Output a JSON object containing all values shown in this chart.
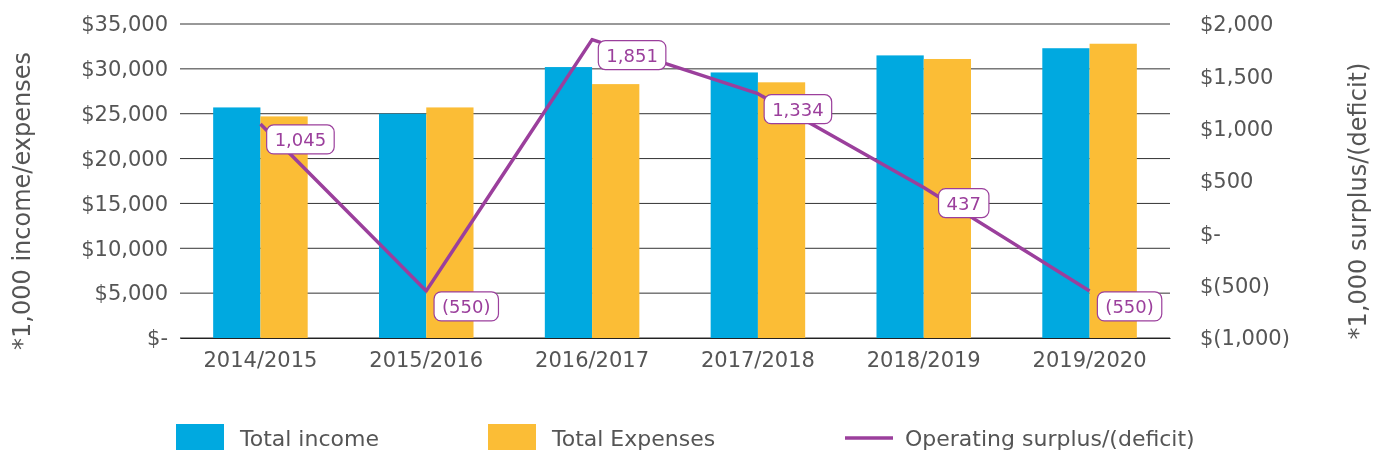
{
  "chart_data": {
    "type": "bar",
    "categories": [
      "2014/2015",
      "2015/2016",
      "2016/2017",
      "2017/2018",
      "2018/2019",
      "2019/2020"
    ],
    "series": [
      {
        "name": "Total income",
        "color": "#00a9e0",
        "values": [
          25700,
          25000,
          30200,
          29600,
          31500,
          32300
        ]
      },
      {
        "name": "Total Expenses",
        "color": "#fbbd36",
        "values": [
          24700,
          25700,
          28300,
          28500,
          31100,
          32800
        ]
      },
      {
        "name": "Operating surplus/(deficit)",
        "type": "line",
        "axis": "y2",
        "color": "#9b3f9c",
        "values": [
          1045,
          -550,
          1851,
          1334,
          437,
          -550
        ],
        "value_labels": [
          "1,045",
          "(550)",
          "1,851",
          "1,334",
          "437",
          "(550)"
        ]
      }
    ],
    "ylim": [
      0,
      35000
    ],
    "yticks": [
      {
        "value": 0,
        "label": "$-"
      },
      {
        "value": 5000,
        "label": "$5,000"
      },
      {
        "value": 10000,
        "label": "$10,000"
      },
      {
        "value": 15000,
        "label": "$15,000"
      },
      {
        "value": 20000,
        "label": "$20,000"
      },
      {
        "value": 25000,
        "label": "$25,000"
      },
      {
        "value": 30000,
        "label": "$30,000"
      },
      {
        "value": 35000,
        "label": "$35,000"
      }
    ],
    "y2lim": [
      -1000,
      2000
    ],
    "y2ticks": [
      {
        "value": -1000,
        "label": "$(1,000)"
      },
      {
        "value": -500,
        "label": "$(500)"
      },
      {
        "value": 0,
        "label": "$-"
      },
      {
        "value": 500,
        "label": "$500"
      },
      {
        "value": 1000,
        "label": "$1,000"
      },
      {
        "value": 1500,
        "label": "$1,500"
      },
      {
        "value": 2000,
        "label": "$2,000"
      }
    ],
    "ylabel": "*1,000 income/expenses",
    "y2label": "*1,000 surplus/(deficit)",
    "grid": "y",
    "legend": "bottom"
  }
}
